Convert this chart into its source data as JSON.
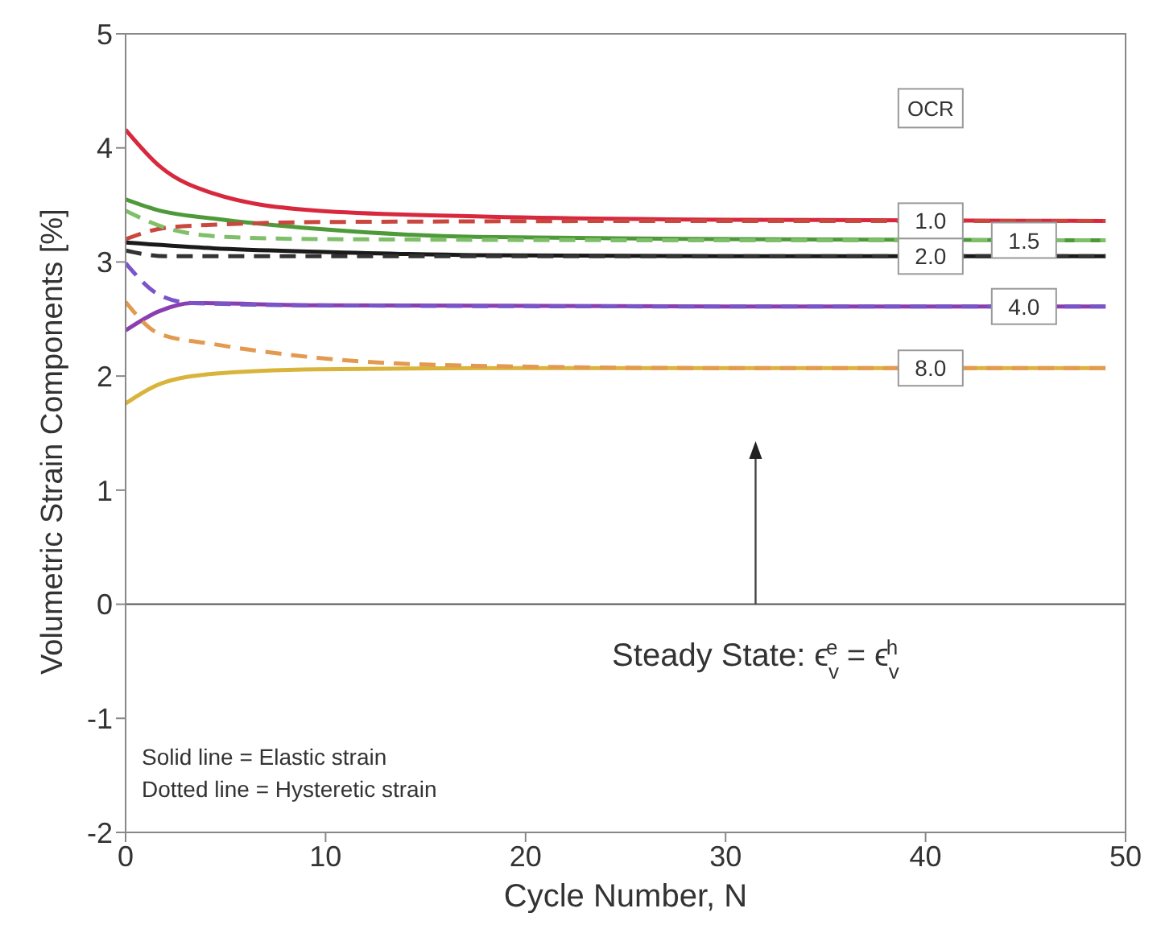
{
  "chart_data": {
    "type": "line",
    "xlabel": "Cycle Number, N",
    "ylabel": "Volumetric Strain Components [%]",
    "legend_title": "OCR",
    "xlim": [
      0,
      50
    ],
    "xticks": [
      0,
      10,
      20,
      30,
      40,
      50
    ],
    "ylim": [
      -2,
      5
    ],
    "yticks": [
      -2,
      -1,
      0,
      1,
      2,
      3,
      4,
      5
    ],
    "grid": false,
    "legend": false,
    "marker": "none",
    "ref_lines": [
      {
        "axis": "y",
        "value": 0,
        "color": "#555555"
      }
    ],
    "annotations": [
      "Steady State: ϵ$_{v}$$^{e}$ = ϵ$_{v}$$^{h}$",
      "Solid line = Elastic strain",
      "Dotted line = Hysteretic strain"
    ],
    "series": [
      {
        "name": "1.0",
        "color": "#d8283e",
        "line_style": "solid",
        "x": [
          0,
          1.7,
          4.4,
          9.6,
          17.5,
          30,
          49
        ],
        "values": [
          4.16,
          3.84,
          3.6,
          3.45,
          3.4,
          3.37,
          3.36
        ]
      },
      {
        "name": "1.5",
        "color": "#4e9a3a",
        "line_style": "solid",
        "x": [
          0,
          1.7,
          4.4,
          9.6,
          17.5,
          30,
          49
        ],
        "values": [
          3.55,
          3.45,
          3.38,
          3.29,
          3.22,
          3.2,
          3.19
        ]
      },
      {
        "name": "2.0",
        "color": "#1a1a1a",
        "line_style": "solid",
        "x": [
          0,
          4.4,
          9.6,
          17.5,
          30,
          49
        ],
        "values": [
          3.17,
          3.12,
          3.09,
          3.06,
          3.05,
          3.05
        ]
      },
      {
        "name": "4.0",
        "color": "#8a3fb0",
        "line_style": "solid",
        "x": [
          0,
          1.7,
          3.3,
          9.6,
          30,
          49
        ],
        "values": [
          2.4,
          2.57,
          2.64,
          2.62,
          2.61,
          2.61
        ]
      },
      {
        "name": "8.0",
        "color": "#d9b43c",
        "line_style": "solid",
        "x": [
          0,
          1.7,
          4.4,
          9.6,
          17.5,
          30,
          49
        ],
        "values": [
          1.76,
          1.93,
          2.02,
          2.06,
          2.07,
          2.07,
          2.07
        ]
      },
      {
        "color": "#c9473f",
        "line_style": "dashed",
        "x": [
          0,
          2,
          5,
          10,
          30,
          49
        ],
        "values": [
          3.2,
          3.3,
          3.33,
          3.35,
          3.36,
          3.36
        ]
      },
      {
        "color": "#7fbf6a",
        "line_style": "dashed",
        "x": [
          0,
          2,
          5,
          10,
          30,
          49
        ],
        "values": [
          3.45,
          3.3,
          3.22,
          3.2,
          3.19,
          3.19
        ]
      },
      {
        "color": "#333333",
        "line_style": "dashed",
        "x": [
          0,
          2,
          10,
          30,
          49
        ],
        "values": [
          3.1,
          3.05,
          3.05,
          3.05,
          3.05
        ]
      },
      {
        "color": "#7a55c8",
        "line_style": "dashed",
        "x": [
          0,
          1.7,
          3.3,
          9.6,
          30,
          49
        ],
        "values": [
          2.99,
          2.71,
          2.64,
          2.62,
          2.61,
          2.61
        ]
      },
      {
        "color": "#e39a50",
        "line_style": "dashed",
        "x": [
          0,
          1.7,
          4.4,
          9.6,
          17.5,
          30,
          49
        ],
        "values": [
          2.65,
          2.37,
          2.28,
          2.16,
          2.09,
          2.07,
          2.07
        ]
      }
    ]
  }
}
